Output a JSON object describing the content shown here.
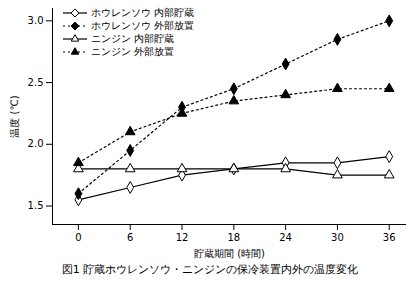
{
  "chart_data": {
    "type": "line",
    "xlabel": "貯蔵期間 (時間)",
    "ylabel": "温度 (℃)",
    "caption": "図1 貯蔵ホウレンソウ・ニンジンの保冷装置内外の温度変化",
    "x": [
      0,
      6,
      12,
      18,
      24,
      30,
      36
    ],
    "xlim": [
      -3,
      38
    ],
    "xticks": [
      0,
      6,
      12,
      18,
      24,
      30,
      36
    ],
    "ylim": [
      1.35,
      3.1
    ],
    "yticks": [
      1.5,
      {
        "value": 2,
        "label": "2.0"
      },
      2.5,
      {
        "value": 3,
        "label": "3.0"
      }
    ],
    "grid": false,
    "legend": "top-left",
    "series": [
      {
        "name": "ホウレンソウ 内部貯蔵",
        "color": "#000000",
        "marker": "open-diamond",
        "line_style": "solid",
        "values": [
          1.55,
          1.65,
          1.75,
          1.8,
          1.85,
          1.85,
          1.9
        ]
      },
      {
        "name": "ホウレンソウ 外部放置",
        "color": "#000000",
        "marker": "diamond",
        "line_style": "dotted",
        "values": [
          1.6,
          1.95,
          2.3,
          2.45,
          2.65,
          2.85,
          3.0
        ]
      },
      {
        "name": "ニンジン 内部貯蔵",
        "color": "#000000",
        "marker": "open-triangle",
        "line_style": "solid",
        "values": [
          1.8,
          1.8,
          1.8,
          1.8,
          1.8,
          1.75,
          1.75
        ]
      },
      {
        "name": "ニンジン 外部放置",
        "color": "#000000",
        "marker": "triangle",
        "line_style": "dotted",
        "values": [
          1.85,
          2.1,
          2.25,
          2.35,
          2.4,
          2.45,
          2.45
        ]
      }
    ]
  }
}
